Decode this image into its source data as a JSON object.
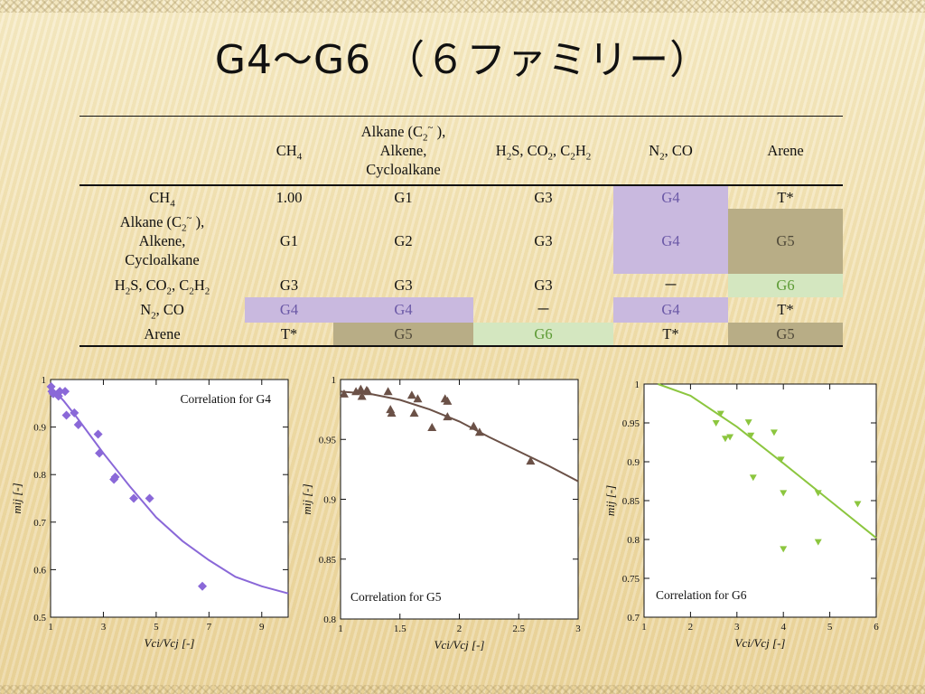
{
  "title": "G4～G6 （６ファミリー）",
  "table": {
    "col_headers": [
      "",
      "CH<sub>4</sub>",
      "Alkane (C<sub>2</sub><sup>~</sup> ),<br>Alkene,<br>Cycloalkane",
      "H<sub>2</sub>S, CO<sub>2</sub>, C<sub>2</sub>H<sub>2</sub>",
      "N<sub>2</sub>, CO",
      "Arene"
    ],
    "rows": [
      {
        "head": "CH<sub>4</sub>",
        "cells": [
          "1.00",
          "G1",
          "G3",
          "G4",
          "T*"
        ]
      },
      {
        "head": "Alkane (C<sub>2</sub><sup>~</sup> ),<br>Alkene,<br>Cycloalkane",
        "cells": [
          "G1",
          "G2",
          "G3",
          "G4",
          "G5"
        ]
      },
      {
        "head": "H<sub>2</sub>S, CO<sub>2</sub>, C<sub>2</sub>H<sub>2</sub>",
        "cells": [
          "G3",
          "G3",
          "G3",
          "－",
          "G6"
        ]
      },
      {
        "head": "N<sub>2</sub>, CO",
        "cells": [
          "G4",
          "G4",
          "－",
          "G4",
          "T*"
        ]
      },
      {
        "head": "Arene",
        "cells": [
          "T*",
          "G5",
          "G6",
          "T*",
          "G5"
        ]
      }
    ],
    "highlight_colors": {
      "G4": "#c9b9df",
      "G5": "#b8ad86",
      "G6": "#d4e7c0"
    }
  },
  "chart_data": [
    {
      "type": "scatter",
      "title": "Correlation for G4",
      "xlabel": "Vci/Vcj [-]",
      "ylabel": "mij [-]",
      "xlim": [
        1,
        10
      ],
      "ylim": [
        0.5,
        1.0
      ],
      "xticks": [
        1,
        3,
        5,
        7,
        9
      ],
      "yticks": [
        0.5,
        0.6,
        0.7,
        0.8,
        0.9,
        1
      ],
      "ytick_labels": [
        "0.5",
        "0.6",
        "0.7",
        "0.8",
        "0.9",
        "1"
      ],
      "marker": "diamond",
      "color": "#8a68d8",
      "points": [
        [
          1.02,
          0.985
        ],
        [
          1.05,
          0.975
        ],
        [
          1.1,
          0.97
        ],
        [
          1.3,
          0.965
        ],
        [
          1.35,
          0.975
        ],
        [
          1.55,
          0.975
        ],
        [
          1.6,
          0.925
        ],
        [
          1.9,
          0.93
        ],
        [
          2.05,
          0.905
        ],
        [
          2.8,
          0.885
        ],
        [
          2.85,
          0.845
        ],
        [
          3.4,
          0.79
        ],
        [
          3.45,
          0.795
        ],
        [
          4.15,
          0.75
        ],
        [
          4.75,
          0.75
        ],
        [
          6.75,
          0.565
        ]
      ],
      "fit_line": [
        [
          1.0,
          0.985
        ],
        [
          1.5,
          0.955
        ],
        [
          2,
          0.92
        ],
        [
          3,
          0.845
        ],
        [
          4,
          0.775
        ],
        [
          5,
          0.71
        ],
        [
          6,
          0.66
        ],
        [
          7,
          0.62
        ],
        [
          8,
          0.585
        ],
        [
          9,
          0.565
        ],
        [
          10,
          0.55
        ]
      ]
    },
    {
      "type": "scatter",
      "title": "Correlation for G5",
      "xlabel": "Vci/Vcj [-]",
      "ylabel": "mij [-]",
      "xlim": [
        1,
        3
      ],
      "ylim": [
        0.8,
        1.0
      ],
      "xticks": [
        1,
        1.5,
        2,
        2.5,
        3
      ],
      "yticks": [
        0.8,
        0.85,
        0.9,
        0.95,
        1
      ],
      "ytick_labels": [
        "0.8",
        "0.85",
        "0.9",
        "0.95",
        "1"
      ],
      "marker": "triangle-up",
      "color": "#6b5147",
      "points": [
        [
          1.03,
          0.988
        ],
        [
          1.13,
          0.99
        ],
        [
          1.17,
          0.992
        ],
        [
          1.18,
          0.986
        ],
        [
          1.22,
          0.991
        ],
        [
          1.23,
          0.99
        ],
        [
          1.4,
          0.99
        ],
        [
          1.42,
          0.975
        ],
        [
          1.43,
          0.972
        ],
        [
          1.6,
          0.987
        ],
        [
          1.62,
          0.972
        ],
        [
          1.65,
          0.984
        ],
        [
          1.77,
          0.96
        ],
        [
          1.88,
          0.984
        ],
        [
          1.9,
          0.982
        ],
        [
          1.9,
          0.969
        ],
        [
          2.12,
          0.961
        ],
        [
          2.17,
          0.956
        ],
        [
          2.6,
          0.932
        ]
      ],
      "fit_line": [
        [
          1.0,
          0.99
        ],
        [
          1.25,
          0.988
        ],
        [
          1.5,
          0.983
        ],
        [
          1.75,
          0.975
        ],
        [
          2.0,
          0.965
        ],
        [
          2.25,
          0.952
        ],
        [
          2.5,
          0.94
        ],
        [
          2.75,
          0.928
        ],
        [
          3.0,
          0.915
        ]
      ]
    },
    {
      "type": "scatter",
      "title": "Correlation for G6",
      "xlabel": "Vci/Vcj [-]",
      "ylabel": "mij [-]",
      "xlim": [
        1,
        6
      ],
      "ylim": [
        0.7,
        1.0
      ],
      "xticks": [
        1,
        2,
        3,
        4,
        5,
        6
      ],
      "yticks": [
        0.7,
        0.75,
        0.8,
        0.85,
        0.9,
        0.95,
        1
      ],
      "ytick_labels": [
        "0.7",
        "0.75",
        "0.8",
        "0.85",
        "0.9",
        "0.95",
        "1"
      ],
      "marker": "triangle-down",
      "color": "#8cc63f",
      "points": [
        [
          2.55,
          0.95
        ],
        [
          2.65,
          0.962
        ],
        [
          2.75,
          0.93
        ],
        [
          2.85,
          0.932
        ],
        [
          3.25,
          0.951
        ],
        [
          3.3,
          0.934
        ],
        [
          3.35,
          0.88
        ],
        [
          3.8,
          0.938
        ],
        [
          3.95,
          0.903
        ],
        [
          4.0,
          0.86
        ],
        [
          4.0,
          0.788
        ],
        [
          4.75,
          0.86
        ],
        [
          4.75,
          0.797
        ],
        [
          5.6,
          0.846
        ]
      ],
      "fit_line": [
        [
          1.3,
          1.0
        ],
        [
          2,
          0.985
        ],
        [
          3,
          0.945
        ],
        [
          4,
          0.898
        ],
        [
          5,
          0.85
        ],
        [
          6,
          0.802
        ]
      ]
    }
  ]
}
